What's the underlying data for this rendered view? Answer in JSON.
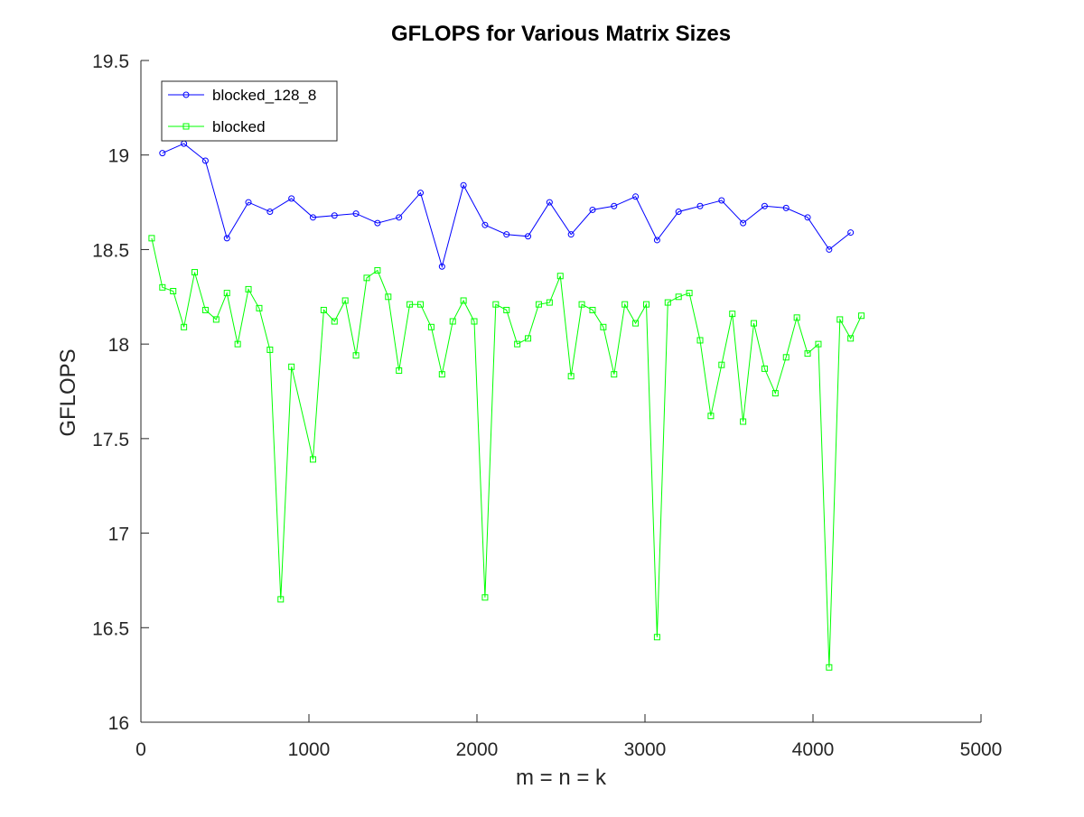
{
  "chart_data": {
    "type": "line",
    "title": "GFLOPS for Various Matrix Sizes",
    "xlabel": "m = n = k",
    "ylabel": "GFLOPS",
    "xlim": [
      0,
      5000
    ],
    "ylim": [
      16,
      19.5
    ],
    "x_ticks": [
      0,
      1000,
      2000,
      3000,
      4000,
      5000
    ],
    "y_ticks": [
      16,
      16.5,
      17,
      17.5,
      18,
      18.5,
      19,
      19.5
    ],
    "x_tick_labels": [
      "0",
      "1000",
      "2000",
      "3000",
      "4000",
      "5000"
    ],
    "y_tick_labels": [
      "16",
      "16.5",
      "17",
      "17.5",
      "18",
      "18.5",
      "19",
      "19.5"
    ],
    "grid": false,
    "legend_position": "top-left",
    "series": [
      {
        "name": "blocked_128_8",
        "color": "#0000ff",
        "marker": "circle",
        "x": [
          128,
          256,
          384,
          512,
          640,
          768,
          896,
          1024,
          1152,
          1280,
          1408,
          1536,
          1664,
          1792,
          1920,
          2048,
          2176,
          2304,
          2432,
          2560,
          2688,
          2816,
          2944,
          3072,
          3200,
          3328,
          3456,
          3584,
          3712,
          3840,
          3968,
          4096,
          4224
        ],
        "y": [
          19.01,
          19.06,
          18.97,
          18.56,
          18.75,
          18.7,
          18.77,
          18.67,
          18.68,
          18.69,
          18.64,
          18.67,
          18.8,
          18.41,
          18.84,
          18.63,
          18.58,
          18.57,
          18.75,
          18.58,
          18.71,
          18.73,
          18.78,
          18.55,
          18.7,
          18.73,
          18.76,
          18.64,
          18.73,
          18.72,
          18.67,
          18.5,
          18.59
        ]
      },
      {
        "name": "blocked",
        "color": "#00ff00",
        "marker": "square",
        "x": [
          64,
          128,
          192,
          256,
          320,
          384,
          448,
          512,
          576,
          640,
          704,
          768,
          832,
          896,
          1024,
          1088,
          1152,
          1216,
          1280,
          1344,
          1408,
          1472,
          1536,
          1600,
          1664,
          1728,
          1792,
          1856,
          1920,
          1984,
          2048,
          2112,
          2176,
          2240,
          2304,
          2368,
          2432,
          2496,
          2560,
          2624,
          2688,
          2752,
          2816,
          2880,
          2944,
          3008,
          3072,
          3136,
          3200,
          3264,
          3328,
          3392,
          3456,
          3520,
          3584,
          3648,
          3712,
          3776,
          3840,
          3904,
          3968,
          4032,
          4096,
          4160,
          4224,
          4288
        ],
        "y": [
          18.56,
          18.3,
          18.28,
          18.09,
          18.38,
          18.18,
          18.13,
          18.27,
          18.0,
          18.29,
          18.19,
          17.97,
          16.65,
          17.88,
          17.39,
          18.18,
          18.12,
          18.23,
          17.94,
          18.35,
          18.39,
          18.25,
          17.86,
          18.21,
          18.21,
          18.09,
          17.84,
          18.12,
          18.23,
          18.12,
          16.66,
          18.21,
          18.18,
          18.0,
          18.03,
          18.21,
          18.22,
          18.36,
          17.83,
          18.21,
          18.18,
          18.09,
          17.84,
          18.21,
          18.11,
          18.21,
          16.45,
          18.22,
          18.25,
          18.27,
          18.02,
          17.62,
          17.89,
          18.16,
          17.59,
          18.11,
          17.87,
          17.74,
          17.93,
          18.14,
          17.95,
          18.0,
          16.29,
          18.13,
          18.03,
          18.15
        ]
      }
    ]
  }
}
